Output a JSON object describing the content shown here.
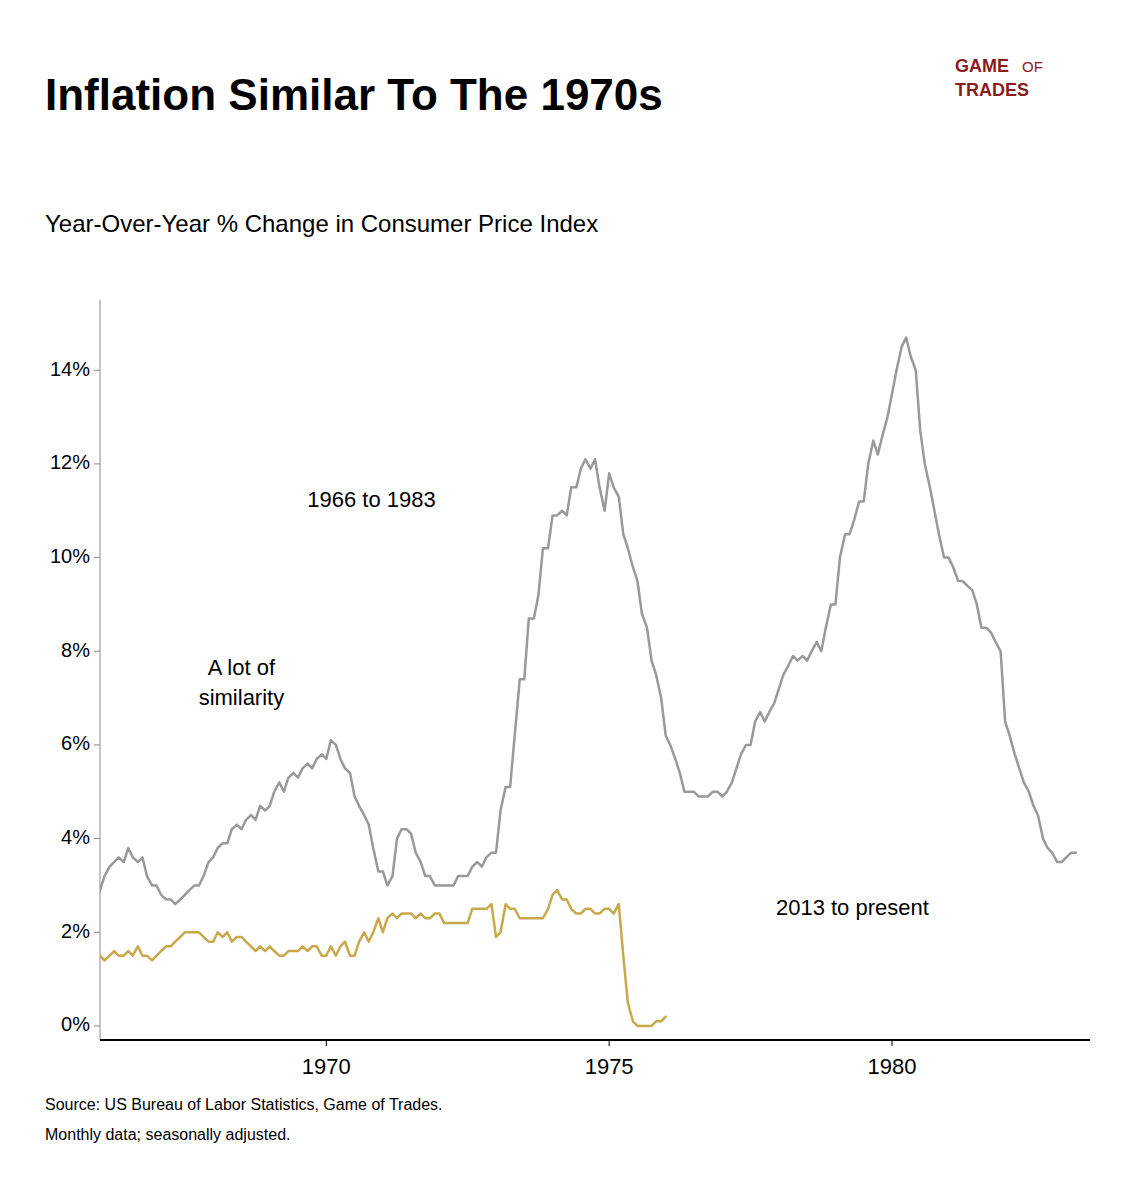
{
  "chart_data": {
    "type": "line",
    "title": "Inflation Similar To The 1970s",
    "subtitle": "Year-Over-Year % Change in Consumer Price Index",
    "source": [
      "Source: US Bureau of Labor Statistics, Game of Trades.",
      "Monthly data; seasonally adjusted."
    ],
    "annotations": [
      "1966 to 1983",
      "A lot of\nsimilarity",
      "2013 to present"
    ],
    "branding": {
      "text": [
        "GAME",
        "OF",
        "TRADES"
      ],
      "color": "#8B1A1A"
    },
    "grid": false,
    "xlim": [
      1966.0,
      1983.5
    ],
    "xticks": [
      1970,
      1975,
      1980
    ],
    "ylim": [
      -0.3,
      15.5
    ],
    "yticks": [
      {
        "value": 0,
        "label": "0%"
      },
      {
        "value": 2,
        "label": "2%"
      },
      {
        "value": 4,
        "label": "4%"
      },
      {
        "value": 6,
        "label": "6%"
      },
      {
        "value": 8,
        "label": "8%"
      },
      {
        "value": 10,
        "label": "10%"
      },
      {
        "value": 12,
        "label": "12%"
      },
      {
        "value": 14,
        "label": "14%"
      }
    ],
    "x": [
      1966.0,
      1966.08,
      1966.17,
      1966.25,
      1966.33,
      1966.42,
      1966.5,
      1966.58,
      1966.67,
      1966.75,
      1966.83,
      1966.92,
      1967.0,
      1967.08,
      1967.17,
      1967.25,
      1967.33,
      1967.42,
      1967.5,
      1967.58,
      1967.67,
      1967.75,
      1967.83,
      1967.92,
      1968.0,
      1968.08,
      1968.17,
      1968.25,
      1968.33,
      1968.42,
      1968.5,
      1968.58,
      1968.67,
      1968.75,
      1968.83,
      1968.92,
      1969.0,
      1969.08,
      1969.17,
      1969.25,
      1969.33,
      1969.42,
      1969.5,
      1969.58,
      1969.67,
      1969.75,
      1969.83,
      1969.92,
      1970.0,
      1970.08,
      1970.17,
      1970.25,
      1970.33,
      1970.42,
      1970.5,
      1970.58,
      1970.67,
      1970.75,
      1970.83,
      1970.92,
      1971.0,
      1971.08,
      1971.17,
      1971.25,
      1971.33,
      1971.42,
      1971.5,
      1971.58,
      1971.67,
      1971.75,
      1971.83,
      1971.92,
      1972.0,
      1972.08,
      1972.17,
      1972.25,
      1972.33,
      1972.42,
      1972.5,
      1972.58,
      1972.67,
      1972.75,
      1972.83,
      1972.92,
      1973.0,
      1973.08,
      1973.17,
      1973.25,
      1973.33,
      1973.42,
      1973.5,
      1973.58,
      1973.67,
      1973.75,
      1973.83,
      1973.92,
      1974.0,
      1974.08,
      1974.17,
      1974.25,
      1974.33,
      1974.42,
      1974.5,
      1974.58,
      1974.67,
      1974.75,
      1974.83,
      1974.92,
      1975.0,
      1975.08,
      1975.17,
      1975.25,
      1975.33,
      1975.42,
      1975.5,
      1975.58,
      1975.67,
      1975.75,
      1975.83,
      1975.92,
      1976.0,
      1976.08,
      1976.17,
      1976.25,
      1976.33,
      1976.42,
      1976.5,
      1976.58,
      1976.67,
      1976.75,
      1976.83,
      1976.92,
      1977.0,
      1977.08,
      1977.17,
      1977.25,
      1977.33,
      1977.42,
      1977.5,
      1977.58,
      1977.67,
      1977.75,
      1977.83,
      1977.92,
      1978.0,
      1978.08,
      1978.17,
      1978.25,
      1978.33,
      1978.42,
      1978.5,
      1978.58,
      1978.67,
      1978.75,
      1978.83,
      1978.92,
      1979.0,
      1979.08,
      1979.17,
      1979.25,
      1979.33,
      1979.42,
      1979.5,
      1979.58,
      1979.67,
      1979.75,
      1979.83,
      1979.92,
      1980.0,
      1980.08,
      1980.17,
      1980.25,
      1980.33,
      1980.42,
      1980.5,
      1980.58,
      1980.67,
      1980.75,
      1980.83,
      1980.92,
      1981.0,
      1981.08,
      1981.17,
      1981.25,
      1981.33,
      1981.42,
      1981.5,
      1981.58,
      1981.67,
      1981.75,
      1981.83,
      1981.92,
      1982.0,
      1982.08,
      1982.17,
      1982.25,
      1982.33,
      1982.42,
      1982.5,
      1982.58,
      1982.67,
      1982.75,
      1982.83,
      1982.92,
      1983.0,
      1983.08,
      1983.17,
      1983.25
    ],
    "series": [
      {
        "color": "#999999",
        "values": [
          2.9,
          3.2,
          3.4,
          3.5,
          3.6,
          3.5,
          3.8,
          3.6,
          3.5,
          3.6,
          3.2,
          3.0,
          3.0,
          2.8,
          2.7,
          2.7,
          2.6,
          2.7,
          2.8,
          2.9,
          3.0,
          3.0,
          3.2,
          3.5,
          3.6,
          3.8,
          3.9,
          3.9,
          4.2,
          4.3,
          4.2,
          4.4,
          4.5,
          4.4,
          4.7,
          4.6,
          4.7,
          5.0,
          5.2,
          5.0,
          5.3,
          5.4,
          5.3,
          5.5,
          5.6,
          5.5,
          5.7,
          5.8,
          5.7,
          6.1,
          6.0,
          5.7,
          5.5,
          5.4,
          4.9,
          4.7,
          4.5,
          4.3,
          3.8,
          3.3,
          3.3,
          3.0,
          3.2,
          4.0,
          4.2,
          4.2,
          4.1,
          3.7,
          3.5,
          3.2,
          3.2,
          3.0,
          3.0,
          3.0,
          3.0,
          3.0,
          3.2,
          3.2,
          3.2,
          3.4,
          3.5,
          3.4,
          3.6,
          3.7,
          3.7,
          4.6,
          5.1,
          5.1,
          6.2,
          7.4,
          7.4,
          8.7,
          8.7,
          9.2,
          10.2,
          10.2,
          10.9,
          10.9,
          11.0,
          10.9,
          11.5,
          11.5,
          11.9,
          12.1,
          11.9,
          12.1,
          11.5,
          11.0,
          11.8,
          11.5,
          11.3,
          10.5,
          10.2,
          9.8,
          9.5,
          8.8,
          8.5,
          7.8,
          7.5,
          7.0,
          6.2,
          6.0,
          5.7,
          5.4,
          5.0,
          5.0,
          5.0,
          4.9,
          4.9,
          4.9,
          5.0,
          5.0,
          4.9,
          5.0,
          5.2,
          5.5,
          5.8,
          6.0,
          6.0,
          6.5,
          6.7,
          6.5,
          6.7,
          6.9,
          7.2,
          7.5,
          7.7,
          7.9,
          7.8,
          7.9,
          7.8,
          8.0,
          8.2,
          8.0,
          8.5,
          9.0,
          9.0,
          10.0,
          10.5,
          10.5,
          10.8,
          11.2,
          11.2,
          12.0,
          12.5,
          12.2,
          12.6,
          13.0,
          13.5,
          14.0,
          14.5,
          14.7,
          14.3,
          14.0,
          12.7,
          12.0,
          11.5,
          11.0,
          10.5,
          10.0,
          10.0,
          9.8,
          9.5,
          9.5,
          9.4,
          9.3,
          9.0,
          8.5,
          8.5,
          8.4,
          8.2,
          8.0,
          6.5,
          6.2,
          5.8,
          5.5,
          5.2,
          5.0,
          4.7,
          4.5,
          4.0,
          3.8,
          3.7,
          3.5,
          3.5,
          3.6,
          3.7,
          3.7
        ]
      },
      {
        "color": "#C9A84C",
        "values": [
          1.5,
          1.4,
          1.5,
          1.6,
          1.5,
          1.5,
          1.6,
          1.5,
          1.7,
          1.5,
          1.5,
          1.4,
          1.5,
          1.6,
          1.7,
          1.7,
          1.8,
          1.9,
          2.0,
          2.0,
          2.0,
          2.0,
          1.9,
          1.8,
          1.8,
          2.0,
          1.9,
          2.0,
          1.8,
          1.9,
          1.9,
          1.8,
          1.7,
          1.6,
          1.7,
          1.6,
          1.7,
          1.6,
          1.5,
          1.5,
          1.6,
          1.6,
          1.6,
          1.7,
          1.6,
          1.7,
          1.7,
          1.5,
          1.5,
          1.7,
          1.5,
          1.7,
          1.8,
          1.5,
          1.5,
          1.8,
          2.0,
          1.8,
          2.0,
          2.3,
          2.0,
          2.3,
          2.4,
          2.3,
          2.4,
          2.4,
          2.4,
          2.3,
          2.4,
          2.3,
          2.3,
          2.4,
          2.4,
          2.2,
          2.2,
          2.2,
          2.2,
          2.2,
          2.2,
          2.5,
          2.5,
          2.5,
          2.5,
          2.6,
          1.9,
          2.0,
          2.6,
          2.5,
          2.5,
          2.3,
          2.3,
          2.3,
          2.3,
          2.3,
          2.3,
          2.5,
          2.8,
          2.9,
          2.7,
          2.7,
          2.5,
          2.4,
          2.4,
          2.5,
          2.5,
          2.4,
          2.4,
          2.5,
          2.5,
          2.4,
          2.6,
          1.5,
          0.5,
          0.1,
          0.0,
          0.0,
          0.0,
          0.0,
          0.1,
          0.1,
          0.2,
          null,
          null,
          null,
          null,
          null,
          null,
          null,
          null,
          null,
          null,
          null,
          null,
          null,
          null,
          null,
          null,
          null,
          null,
          null,
          null,
          null,
          null,
          null,
          null,
          null,
          null,
          null,
          null,
          null,
          null,
          null,
          null,
          null,
          null,
          null,
          null,
          null,
          null,
          null,
          null,
          null,
          null,
          null,
          null,
          null,
          null,
          null,
          null,
          null,
          null,
          null,
          null,
          null,
          null,
          null,
          null,
          null,
          null,
          null,
          null,
          null,
          null,
          null,
          null,
          null,
          null,
          null,
          null,
          null,
          null,
          null,
          null,
          null,
          null,
          null,
          null,
          null,
          null,
          null,
          null,
          null,
          null,
          null,
          null,
          null,
          null,
          null
        ]
      }
    ]
  }
}
